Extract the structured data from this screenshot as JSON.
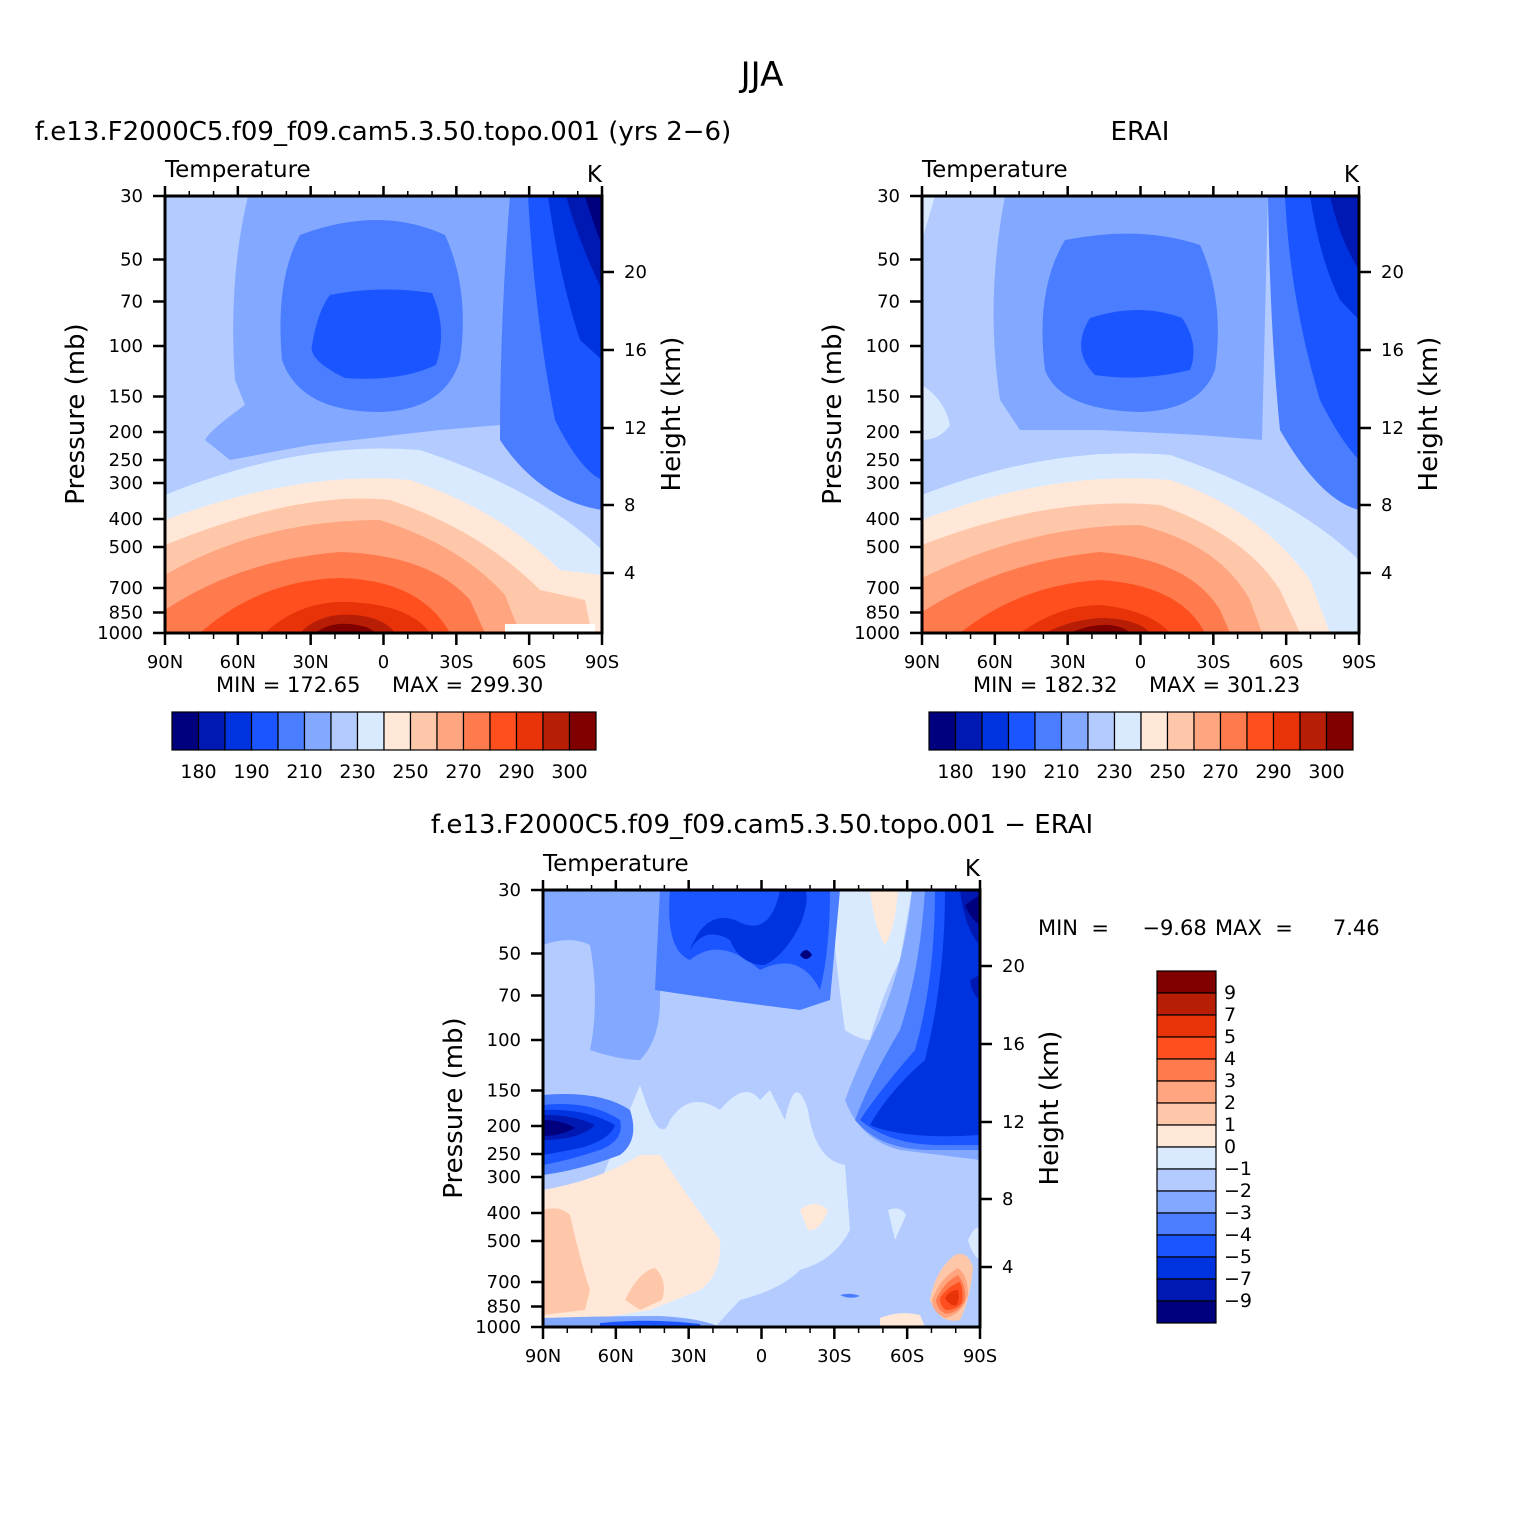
{
  "page": {
    "title": "JJA",
    "panel1_title": "f.e13.F2000C5.f09_f09.cam5.3.50.topo.001  (yrs 2−6)",
    "panel2_title": "ERAI",
    "panel3_title": "f.e13.F2000C5.f09_f09.cam5.3.50.topo.001  −  ERAI"
  },
  "chart_data": [
    {
      "type": "heatmap",
      "left_label": "Temperature",
      "right_label": "K",
      "ylabel": "Pressure  (mb)",
      "ylabel_right": "Height  (km)",
      "x_ticks": [
        "90N",
        "60N",
        "30N",
        "0",
        "30S",
        "60S",
        "90S"
      ],
      "y_ticks": [
        "30",
        "50",
        "70",
        "100",
        "150",
        "200",
        "250",
        "300",
        "400",
        "500",
        "700",
        "850",
        "1000"
      ],
      "y_right_ticks": [
        "20",
        "16",
        "12",
        "8",
        "4"
      ],
      "min_text": "MIN  =  172.65",
      "max_text": "MAX  =  299.30",
      "min": 172.65,
      "max": 299.3,
      "colorbar_labels": [
        "180",
        "190",
        "210",
        "230",
        "250",
        "270",
        "290",
        "300"
      ]
    },
    {
      "type": "heatmap",
      "left_label": "Temperature",
      "right_label": "K",
      "ylabel": "Pressure  (mb)",
      "ylabel_right": "Height  (km)",
      "x_ticks": [
        "90N",
        "60N",
        "30N",
        "0",
        "30S",
        "60S",
        "90S"
      ],
      "y_ticks": [
        "30",
        "50",
        "70",
        "100",
        "150",
        "200",
        "250",
        "300",
        "400",
        "500",
        "700",
        "850",
        "1000"
      ],
      "y_right_ticks": [
        "20",
        "16",
        "12",
        "8",
        "4"
      ],
      "min_text": "MIN  =  182.32",
      "max_text": "MAX  =  301.23",
      "min": 182.32,
      "max": 301.23,
      "colorbar_labels": [
        "180",
        "190",
        "210",
        "230",
        "250",
        "270",
        "290",
        "300"
      ]
    },
    {
      "type": "heatmap",
      "left_label": "Temperature",
      "right_label": "K",
      "ylabel": "Pressure  (mb)",
      "ylabel_right": "Height  (km)",
      "x_ticks": [
        "90N",
        "60N",
        "30N",
        "0",
        "30S",
        "60S",
        "90S"
      ],
      "y_ticks": [
        "30",
        "50",
        "70",
        "100",
        "150",
        "200",
        "250",
        "300",
        "400",
        "500",
        "700",
        "850",
        "1000"
      ],
      "y_right_ticks": [
        "20",
        "16",
        "12",
        "8",
        "4"
      ],
      "min_text": "MIN  =     −9.68",
      "max_text": "MAX  =      7.46",
      "min": -9.68,
      "max": 7.46,
      "colorbar_labels": [
        "9",
        "7",
        "5",
        "4",
        "3",
        "2",
        "1",
        "0",
        "−1",
        "−2",
        "−3",
        "−4",
        "−5",
        "−7",
        "−9"
      ]
    }
  ],
  "colors": {
    "abs_scale": [
      "#00007f",
      "#0019b3",
      "#0033e0",
      "#1a55ff",
      "#4a7dff",
      "#82a8ff",
      "#b3cbff",
      "#d9eaff",
      "#ffe8d8",
      "#ffc7aa",
      "#ffa580",
      "#ff7a4d",
      "#ff4f1f",
      "#e83208",
      "#b81e05",
      "#800000"
    ],
    "diff_scale_top_to_bottom": [
      "#800000",
      "#b81e05",
      "#e83208",
      "#ff4f1f",
      "#ff7a4d",
      "#ffa580",
      "#ffc7aa",
      "#ffe8d8",
      "#d9eaff",
      "#b3cbff",
      "#82a8ff",
      "#4a7dff",
      "#1a55ff",
      "#0033e0",
      "#0019b3",
      "#00007f"
    ]
  }
}
